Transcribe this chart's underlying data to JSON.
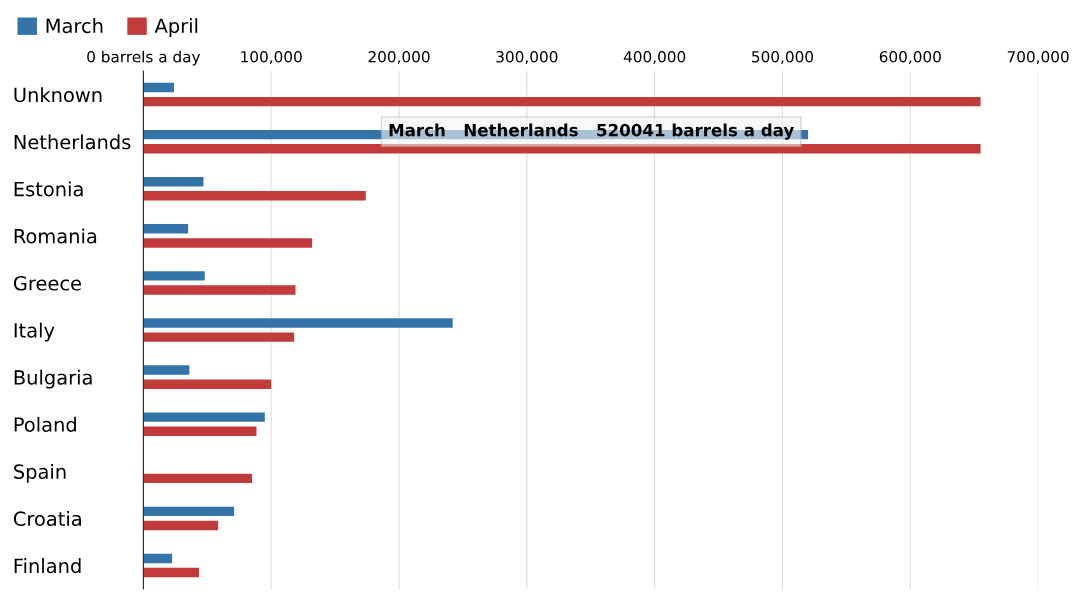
{
  "chart_data": {
    "type": "bar",
    "orientation": "horizontal",
    "categories": [
      "Unknown",
      "Netherlands",
      "Estonia",
      "Romania",
      "Greece",
      "Italy",
      "Bulgaria",
      "Poland",
      "Spain",
      "Croatia",
      "Finland"
    ],
    "series": [
      {
        "name": "March",
        "color": "#3574a8",
        "values": [
          24000,
          520041,
          47000,
          35000,
          48000,
          242000,
          36000,
          95000,
          null,
          71000,
          22500
        ]
      },
      {
        "name": "April",
        "color": "#c23b3b",
        "values": [
          655000,
          655000,
          174000,
          132000,
          119000,
          118000,
          100000,
          88500,
          85000,
          58500,
          43500
        ]
      }
    ],
    "xlim": [
      0,
      700000
    ],
    "xticks": [
      {
        "value": 0,
        "label": "0 barrels a day"
      },
      {
        "value": 100000,
        "label": "100,000"
      },
      {
        "value": 200000,
        "label": "200,000"
      },
      {
        "value": 300000,
        "label": "300,000"
      },
      {
        "value": 400000,
        "label": "400,000"
      },
      {
        "value": 500000,
        "label": "500,000"
      },
      {
        "value": 600000,
        "label": "600,000"
      },
      {
        "value": 700000,
        "label": "700,000"
      }
    ],
    "grid": "x",
    "legend": "top left",
    "annotations": [
      "March   Netherlands   520041 barrels a day"
    ]
  }
}
